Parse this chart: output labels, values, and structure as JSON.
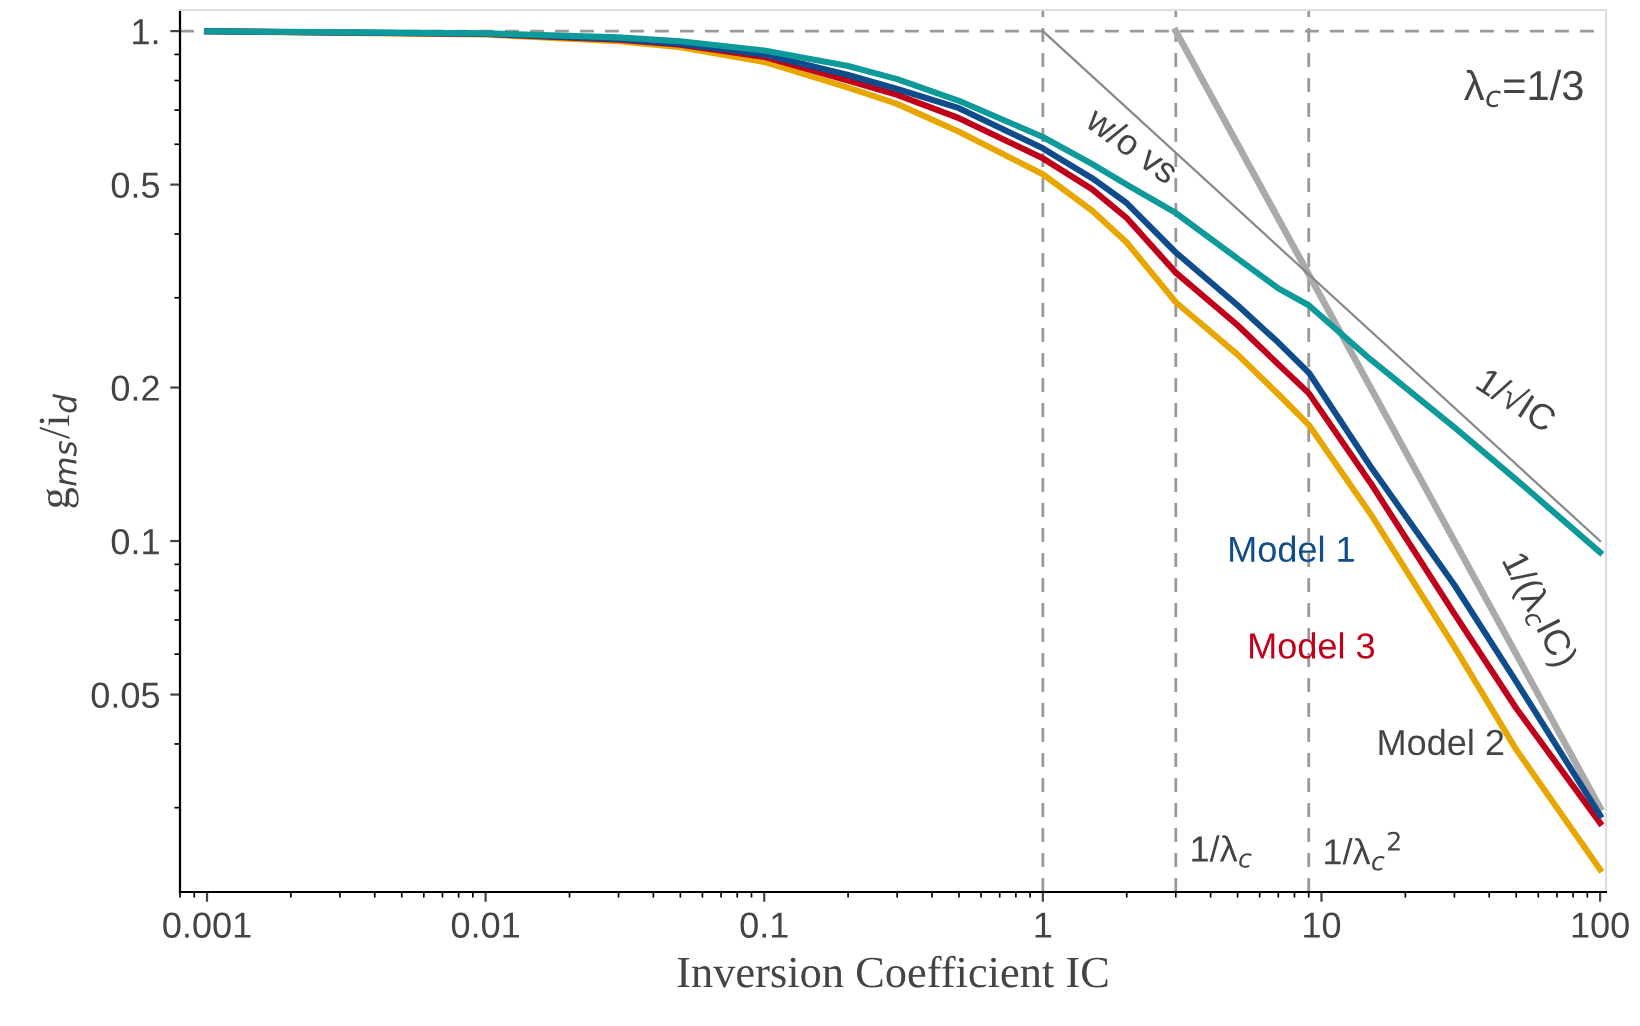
{
  "chart_data": {
    "type": "line",
    "xlabel": "Inversion Coefficient IC",
    "ylabel": "g$_{ms}$/i$_{d}$",
    "log": "xy",
    "grid": false,
    "legend": false,
    "marker": "none",
    "line_style": "solid",
    "xlim": [
      0.0008,
      105
    ],
    "ylim": [
      0.0205,
      1.1
    ],
    "xticks": [
      0.001,
      0.01,
      0.1,
      1,
      10,
      100
    ],
    "yticks": [
      0.05,
      0.1,
      0.2,
      0.5,
      {
        "value": 1,
        "label": "1."
      }
    ],
    "x": [
      0.001,
      0.01,
      0.03,
      0.05,
      0.1,
      0.2,
      0.3,
      0.5,
      1,
      1.5,
      2,
      3,
      5,
      7,
      9,
      15,
      30,
      50,
      100
    ],
    "series": [
      {
        "name": "Model 2",
        "color": "#e8a600",
        "values": [
          0.999,
          0.985,
          0.955,
          0.93,
          0.87,
          0.775,
          0.72,
          0.635,
          0.524,
          0.445,
          0.385,
          0.294,
          0.232,
          0.194,
          0.169,
          0.113,
          0.062,
          0.039,
          0.0227
        ]
      },
      {
        "name": "Model 3",
        "color": "#c0001a",
        "values": [
          0.999,
          0.987,
          0.962,
          0.94,
          0.89,
          0.8,
          0.75,
          0.675,
          0.563,
          0.49,
          0.43,
          0.336,
          0.265,
          0.222,
          0.195,
          0.13,
          0.072,
          0.047,
          0.028
        ]
      },
      {
        "name": "Model 1",
        "color": "#0f4c8c",
        "values": [
          0.999,
          0.988,
          0.965,
          0.945,
          0.9,
          0.82,
          0.77,
          0.706,
          0.589,
          0.515,
          0.46,
          0.368,
          0.29,
          0.245,
          0.214,
          0.14,
          0.082,
          0.053,
          0.029
        ]
      },
      {
        "name": "w/o vs",
        "color": "#0e9a9a",
        "values": [
          0.999,
          0.99,
          0.972,
          0.955,
          0.916,
          0.854,
          0.805,
          0.73,
          0.62,
          0.549,
          0.5,
          0.44,
          0.358,
          0.313,
          0.29,
          0.227,
          0.167,
          0.132,
          0.095
        ]
      },
      {
        "name": "1/(λ$_{c}$IC)",
        "color": "#aaaaaa",
        "x": [
          3,
          100
        ],
        "values": [
          1,
          0.03
        ]
      },
      {
        "name": "1/√IC",
        "color": "#888888",
        "x": [
          1,
          100
        ],
        "values": [
          1,
          0.1
        ]
      }
    ],
    "ref_lines": [
      {
        "axis": "y",
        "value": 1,
        "label": null,
        "color": "#999999",
        "line_style": "dashed"
      },
      {
        "axis": "x",
        "value": 1,
        "label": null,
        "color": "#999999",
        "line_style": "dashed"
      },
      {
        "axis": "x",
        "value": 3,
        "label": "1/λ$_{c}$",
        "color": "#999999",
        "line_style": "dashed"
      },
      {
        "axis": "x",
        "value": 9,
        "label": "1/λ$_{c}$$^{2}$",
        "color": "#999999",
        "line_style": "dashed"
      }
    ],
    "annotations": [
      "λ$_{c}$=1/3"
    ]
  }
}
